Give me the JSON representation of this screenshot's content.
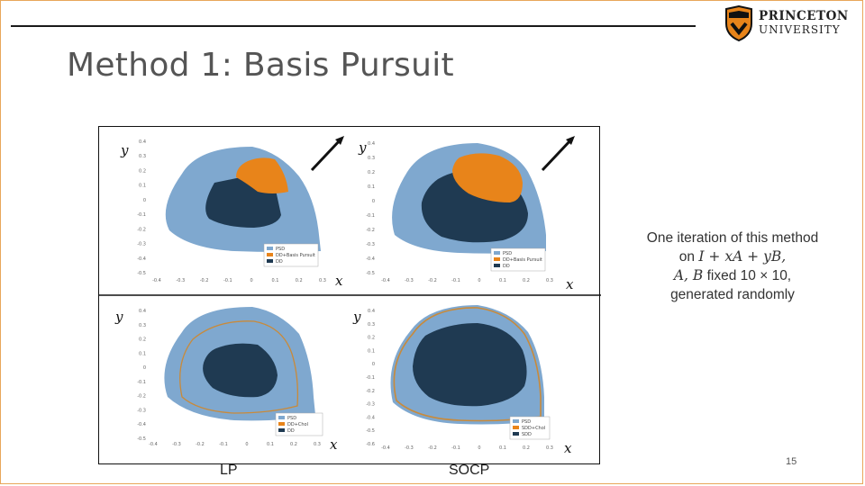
{
  "slide": {
    "title": "Method 1: Basis Pursuit",
    "page_number": "15"
  },
  "logo": {
    "line1": "PRINCETON",
    "line2": "UNIVERSITY"
  },
  "note": {
    "line1": "One iteration of this method",
    "line2_prefix": "on ",
    "line2_math": "I + xA + yB,",
    "line3_math": "A, B",
    "line3_text": " fixed 10 × 10,",
    "line4": "generated randomly"
  },
  "captions": {
    "left": "LP",
    "right": "SOCP"
  },
  "colors": {
    "psd": "#7fa8cf",
    "inner": "#1f3a52",
    "orange": "#e8841a",
    "orange_line": "#c98a3a",
    "frame": "#e8a75a"
  },
  "panels": [
    {
      "id": "top-left",
      "x_var": "x",
      "y_var": "y",
      "y_ticks": [
        "0.4",
        "0.3",
        "0.2",
        "0.1",
        "0",
        "-0.1",
        "-0.2",
        "-0.3",
        "-0.4",
        "-0.5"
      ],
      "x_ticks": [
        "-0.4",
        "-0.3",
        "-0.2",
        "-0.1",
        "0",
        "0.1",
        "0.2",
        "0.3"
      ],
      "legend": [
        "PSD",
        "DD+Basis Pursuit",
        "DD"
      ]
    },
    {
      "id": "top-right",
      "x_var": "x",
      "y_var": "y",
      "y_ticks": [
        "0.4",
        "0.3",
        "0.2",
        "0.1",
        "0",
        "-0.1",
        "-0.2",
        "-0.3",
        "-0.4",
        "-0.5"
      ],
      "x_ticks": [
        "-0.4",
        "-0.3",
        "-0.2",
        "-0.1",
        "0",
        "0.1",
        "0.2",
        "0.3"
      ],
      "legend": [
        "PSD",
        "DD+Basis Pursuit",
        "DD"
      ]
    },
    {
      "id": "bottom-left",
      "x_var": "x",
      "y_var": "y",
      "y_ticks": [
        "0.4",
        "0.3",
        "0.2",
        "0.1",
        "0",
        "-0.1",
        "-0.2",
        "-0.3",
        "-0.4",
        "-0.5"
      ],
      "x_ticks": [
        "-0.4",
        "-0.3",
        "-0.2",
        "-0.1",
        "0",
        "0.1",
        "0.2",
        "0.3"
      ],
      "legend": [
        "PSD",
        "DD+Chol",
        "DD"
      ]
    },
    {
      "id": "bottom-right",
      "x_var": "x",
      "y_var": "y",
      "y_ticks": [
        "0.4",
        "0.3",
        "0.2",
        "0.1",
        "0",
        "-0.1",
        "-0.2",
        "-0.3",
        "-0.4",
        "-0.5",
        "-0.6"
      ],
      "x_ticks": [
        "-0.4",
        "-0.3",
        "-0.2",
        "-0.1",
        "0",
        "0.1",
        "0.2",
        "0.3"
      ],
      "legend": [
        "PSD",
        "SDD+Chol",
        "SDD"
      ]
    }
  ]
}
